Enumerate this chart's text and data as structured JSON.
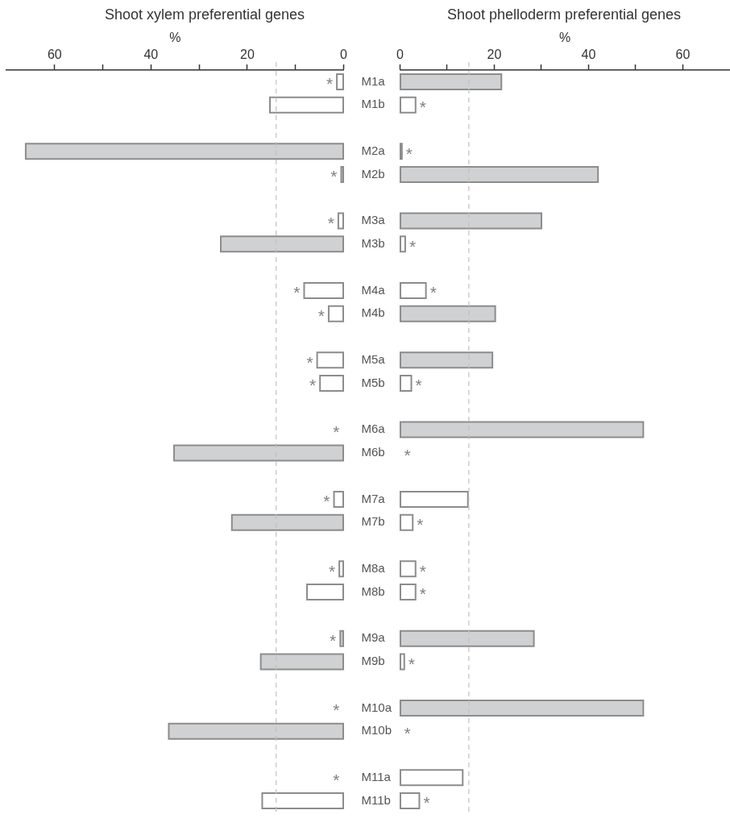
{
  "chart_data": [
    {
      "type": "bar",
      "orientation": "horizontal",
      "title": "Shoot xylem preferential genes",
      "xlabel": "%",
      "grid": false,
      "categories": [
        "M1a",
        "M1b",
        null,
        "M2a",
        "M2b",
        null,
        "M3a",
        "M3b",
        null,
        "M4a",
        "M4b",
        null,
        "M5a",
        "M5b",
        null,
        "M6a",
        "M6b",
        null,
        "M7a",
        "M7b",
        null,
        "M8a",
        "M8b",
        null,
        "M9a",
        "M9b",
        null,
        "M10a",
        "M10b",
        null,
        "M11a",
        "M11b"
      ],
      "series": [
        {
          "color": "#8c8c8c",
          "values": [
            1.4,
            15.3,
            null,
            66,
            0.5,
            null,
            1.1,
            25.5,
            null,
            8.2,
            3.1,
            null,
            5.5,
            4.9,
            null,
            0,
            35.2,
            null,
            2.0,
            23.2,
            null,
            0.9,
            7.6,
            null,
            0.7,
            17.2,
            null,
            0,
            36.3,
            null,
            0,
            16.9
          ],
          "colors": [
            "#ffffff",
            "#ffffff",
            null,
            "#d0d1d3",
            "#d0d1d3",
            null,
            "#ffffff",
            "#d0d1d3",
            null,
            "#ffffff",
            "#ffffff",
            null,
            "#ffffff",
            "#ffffff",
            null,
            null,
            "#d0d1d3",
            null,
            "#ffffff",
            "#d0d1d3",
            null,
            "#ffffff",
            "#ffffff",
            null,
            "#d0d1d3",
            "#d0d1d3",
            null,
            null,
            "#d0d1d3",
            null,
            null,
            "#ffffff"
          ],
          "value_labels": [
            "*",
            null,
            null,
            null,
            "*",
            null,
            "*",
            null,
            null,
            "*",
            "*",
            null,
            "*",
            "*",
            null,
            "*",
            null,
            null,
            "*",
            null,
            null,
            "*",
            null,
            null,
            "*",
            null,
            null,
            "*",
            null,
            null,
            "*",
            null
          ]
        }
      ],
      "xlim": [
        70,
        0
      ],
      "xticks": [
        60,
        {
          "value": 50,
          "label": null
        },
        40,
        {
          "value": 30,
          "label": null
        },
        20,
        {
          "value": 10,
          "label": null
        },
        0
      ],
      "ref_lines": [
        {
          "axis": "x",
          "value": 14,
          "color": "#c0c0c0",
          "line_style": "dashed"
        }
      ]
    },
    {
      "type": "bar",
      "orientation": "horizontal",
      "title": "Shoot phelloderm preferential genes",
      "xlabel": "%",
      "grid": false,
      "tick_labels": "x",
      "categories": [
        null,
        null,
        null,
        null,
        null,
        null,
        null,
        null,
        null,
        null,
        null,
        null,
        null,
        null,
        null,
        null,
        null,
        null,
        null,
        null,
        null,
        null,
        null,
        null,
        null,
        null,
        null,
        null,
        null,
        null,
        null,
        null
      ],
      "series": [
        {
          "color": "#8c8c8c",
          "values": [
            21.5,
            3.3,
            null,
            0.4,
            42.0,
            null,
            30.0,
            1.1,
            null,
            5.5,
            20.2,
            null,
            19.6,
            2.4,
            null,
            51.6,
            0,
            null,
            14.4,
            2.7,
            null,
            3.3,
            3.3,
            null,
            28.4,
            0.9,
            null,
            51.6,
            0,
            null,
            13.3,
            4.1
          ],
          "colors": [
            "#d0d1d3",
            "#ffffff",
            null,
            "#d0d1d3",
            "#d0d1d3",
            null,
            "#d0d1d3",
            "#ffffff",
            null,
            "#ffffff",
            "#d0d1d3",
            null,
            "#d0d1d3",
            "#ffffff",
            null,
            "#d0d1d3",
            null,
            null,
            "#ffffff",
            "#ffffff",
            null,
            "#ffffff",
            "#ffffff",
            null,
            "#d0d1d3",
            "#ffffff",
            null,
            "#d0d1d3",
            null,
            null,
            "#ffffff",
            "#ffffff"
          ],
          "value_labels": [
            null,
            "*",
            null,
            "*",
            null,
            null,
            null,
            "*",
            null,
            "*",
            null,
            null,
            null,
            "*",
            null,
            null,
            "*",
            null,
            null,
            "*",
            null,
            "*",
            "*",
            null,
            null,
            "*",
            null,
            null,
            "*",
            null,
            null,
            "*"
          ]
        }
      ],
      "xlim": [
        0,
        70
      ],
      "xticks": [
        0,
        {
          "value": 10,
          "label": null
        },
        20,
        {
          "value": 30,
          "label": null
        },
        40,
        {
          "value": 50,
          "label": null
        },
        60
      ],
      "ref_lines": [
        {
          "axis": "x",
          "value": 14.6,
          "color": "#c0c0c0",
          "line_style": "dashed"
        }
      ]
    }
  ]
}
